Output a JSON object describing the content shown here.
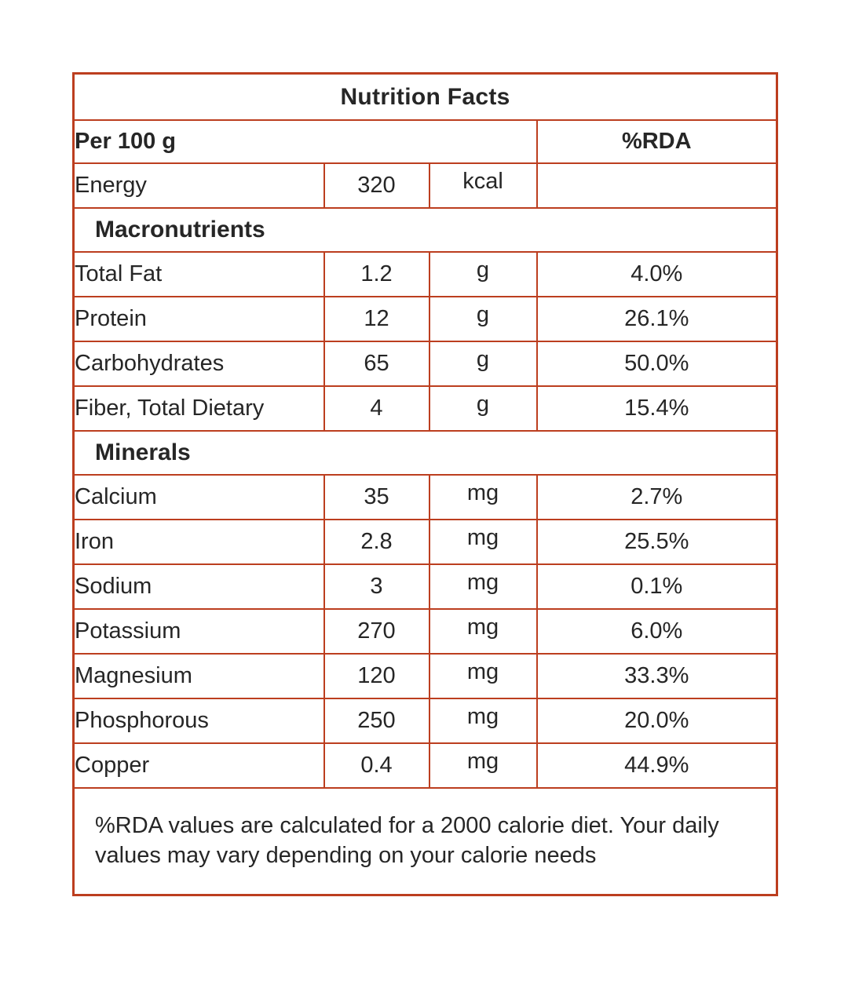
{
  "nutrition_table": {
    "title": "Nutrition Facts",
    "serving_header": "Per 100 g",
    "rda_header": "%RDA",
    "energy": {
      "label": "Energy",
      "value": "320",
      "unit": "kcal",
      "rda": ""
    },
    "sections": [
      {
        "header": "Macronutrients",
        "rows": [
          {
            "label": "Total Fat",
            "value": "1.2",
            "unit": "g",
            "rda": "4.0%"
          },
          {
            "label": "Protein",
            "value": "12",
            "unit": "g",
            "rda": "26.1%"
          },
          {
            "label": "Carbohydrates",
            "value": "65",
            "unit": "g",
            "rda": "50.0%"
          },
          {
            "label": "Fiber, Total Dietary",
            "value": "4",
            "unit": "g",
            "rda": "15.4%"
          }
        ]
      },
      {
        "header": "Minerals",
        "rows": [
          {
            "label": "Calcium",
            "value": "35",
            "unit": "mg",
            "rda": "2.7%"
          },
          {
            "label": "Iron",
            "value": "2.8",
            "unit": "mg",
            "rda": "25.5%"
          },
          {
            "label": "Sodium",
            "value": "3",
            "unit": "mg",
            "rda": "0.1%"
          },
          {
            "label": "Potassium",
            "value": "270",
            "unit": "mg",
            "rda": "6.0%"
          },
          {
            "label": "Magnesium",
            "value": "120",
            "unit": "mg",
            "rda": "33.3%"
          },
          {
            "label": "Phosphorous",
            "value": "250",
            "unit": "mg",
            "rda": "20.0%"
          },
          {
            "label": "Copper",
            "value": "0.4",
            "unit": "mg",
            "rda": "44.9%"
          }
        ]
      }
    ],
    "footnote": "%RDA values are calculated for a 2000 calorie diet. Your daily values may vary depending on your calorie needs",
    "colors": {
      "border": "#bc3e1f",
      "text": "#262626",
      "background": "#ffffff"
    }
  }
}
